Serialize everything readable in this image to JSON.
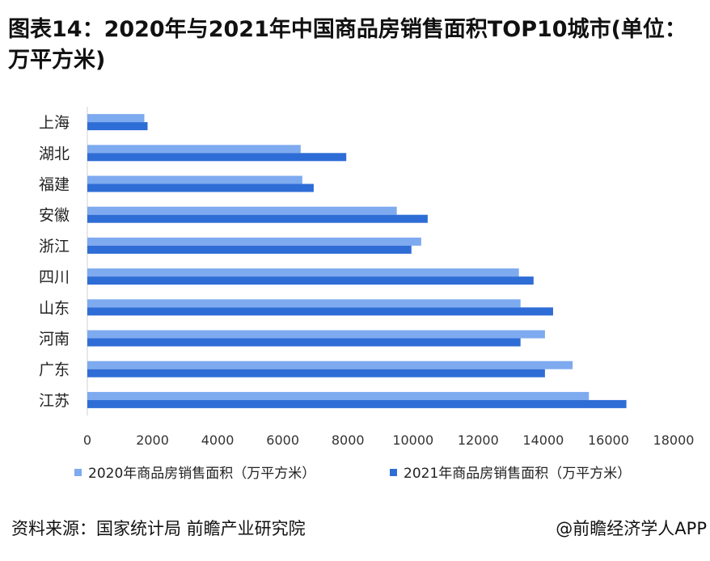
{
  "title": "图表14：2020年与2021年中国商品房销售面积TOP10城市(单位：万平方米)",
  "source": "资料来源：国家统计局 前瞻产业研究院",
  "brand": "@前瞻经济学人APP",
  "colors": {
    "series2020": "#7eaaef",
    "series2021": "#2f6dd6",
    "axis": "#d0d0d0"
  },
  "chart_data": {
    "type": "bar",
    "orientation": "horizontal",
    "categories": [
      "上海",
      "湖北",
      "福建",
      "安徽",
      "浙江",
      "四川",
      "山东",
      "河南",
      "广东",
      "江苏"
    ],
    "series": [
      {
        "name": "2020年商品房销售面积（万平方米）",
        "values": [
          1750,
          6550,
          6600,
          9500,
          10250,
          13250,
          13300,
          14050,
          14900,
          15400
        ]
      },
      {
        "name": "2021年商品房销售面积（万平方米）",
        "values": [
          1850,
          7950,
          6950,
          10450,
          9950,
          13700,
          14300,
          13300,
          14050,
          16550
        ]
      }
    ],
    "xticks": [
      "0",
      "2000",
      "4000",
      "6000",
      "8000",
      "10000",
      "12000",
      "14000",
      "16000",
      "18000"
    ],
    "xlim": [
      0,
      18000
    ],
    "grid": false,
    "legend_position": "bottom"
  }
}
